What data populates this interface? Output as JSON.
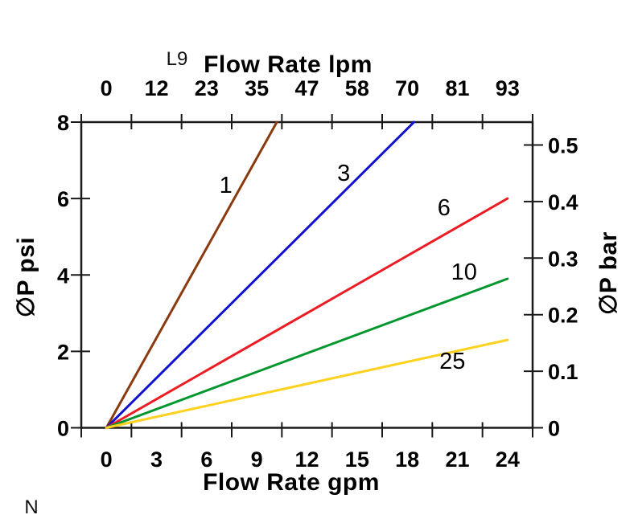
{
  "page": {
    "background": "#ffffff",
    "text_color": "#000000"
  },
  "annotations": {
    "model_code": "L9",
    "corner_note": "N"
  },
  "axes": {
    "top": {
      "title": "Flow Rate lpm",
      "tick_labels": [
        "0",
        "12",
        "23",
        "35",
        "47",
        "58",
        "70",
        "81",
        "93"
      ]
    },
    "bottom": {
      "title": "Flow Rate gpm",
      "tick_labels": [
        "0",
        "3",
        "6",
        "9",
        "12",
        "15",
        "18",
        "21",
        "24"
      ]
    },
    "left": {
      "title": "∅P psi",
      "tick_labels": [
        "0",
        "2",
        "4",
        "6",
        "8"
      ]
    },
    "right": {
      "title": "∅P bar",
      "tick_labels": [
        "0",
        "0.1",
        "0.2",
        "0.3",
        "0.4",
        "0.5"
      ]
    }
  },
  "chart_data": {
    "type": "line",
    "title": "",
    "xlabel": "Flow Rate gpm",
    "xlabel_top": "Flow Rate lpm",
    "ylabel_left": "∅P psi",
    "ylabel_right": "∅P bar",
    "x_unit_bottom": "gpm",
    "x_unit_top": "lpm",
    "y_unit_left": "psi",
    "y_unit_right": "bar",
    "xlim_gpm": [
      0,
      24
    ],
    "ylim_psi": [
      0,
      8
    ],
    "ylim_bar": [
      0,
      0.55
    ],
    "x_ticks_gpm": [
      0,
      3,
      6,
      9,
      12,
      15,
      18,
      21,
      24
    ],
    "x_ticks_lpm": [
      0,
      12,
      23,
      35,
      47,
      58,
      70,
      81,
      93
    ],
    "y_ticks_psi": [
      0,
      2,
      4,
      6,
      8
    ],
    "y_ticks_bar": [
      0,
      0.1,
      0.2,
      0.3,
      0.4,
      0.5
    ],
    "grid": false,
    "legend": "inline-curve-labels",
    "axis_color": "#1a1a1a",
    "series": [
      {
        "label": "1",
        "color": "#8B3A10",
        "slope_psi_per_gpm": 0.785,
        "points": [
          [
            0,
            0
          ],
          [
            10.2,
            8.0
          ]
        ],
        "label_pos": [
          7.15,
          6.36
        ]
      },
      {
        "label": "3",
        "color": "#1212CE",
        "slope_psi_per_gpm": 0.435,
        "points": [
          [
            0,
            0
          ],
          [
            18.4,
            8.0
          ]
        ],
        "label_pos": [
          14.2,
          6.68
        ]
      },
      {
        "label": "6",
        "color": "#EC1C24",
        "slope_psi_per_gpm": 0.25,
        "points": [
          [
            0,
            0
          ],
          [
            24.0,
            6.0
          ]
        ],
        "label_pos": [
          20.2,
          5.77
        ]
      },
      {
        "label": "10",
        "color": "#00962E",
        "slope_psi_per_gpm": 0.1625,
        "points": [
          [
            0,
            0
          ],
          [
            24.0,
            3.9
          ]
        ],
        "label_pos": [
          21.4,
          4.09
        ]
      },
      {
        "label": "25",
        "color": "#FFD21F",
        "slope_psi_per_gpm": 0.0958,
        "points": [
          [
            0,
            0
          ],
          [
            24.0,
            2.3
          ]
        ],
        "label_pos": [
          20.7,
          1.76
        ]
      }
    ]
  }
}
